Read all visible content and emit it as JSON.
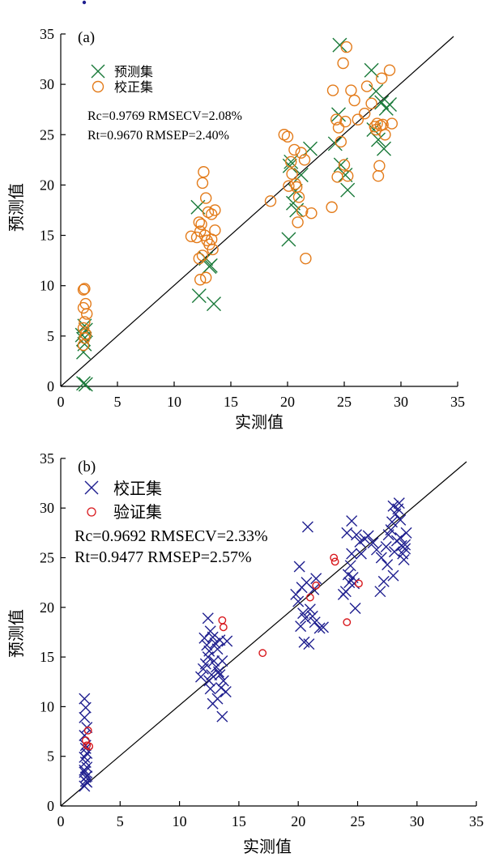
{
  "colors": {
    "green_marker": "#1a7a3a",
    "orange_marker": "#e37b1a",
    "navy_marker": "#1f1f8f",
    "red_marker": "#d8191e",
    "axis": "#000000"
  },
  "chart_data": [
    {
      "type": "scatter",
      "panel_label": "(a)",
      "xlabel": "实测值",
      "ylabel": "预测值",
      "xlim": [
        0,
        35
      ],
      "ylim": [
        0,
        35
      ],
      "xticks": [
        "0",
        "5",
        "10",
        "15",
        "20",
        "25",
        "30",
        "35"
      ],
      "yticks": [
        "0",
        "5",
        "10",
        "15",
        "20",
        "25",
        "30",
        "35"
      ],
      "grid": false,
      "legend_position": "top-left",
      "stats": [
        "Rc=0.9769 RMSECV=2.08%",
        "Rt=0.9670 RMSEP=2.40%"
      ],
      "reference_line": "y = x",
      "series": [
        {
          "name": "预测集",
          "marker": "x",
          "color": "#1a7a3a",
          "points": [
            [
              2.0,
              0.3
            ],
            [
              2.2,
              0.2
            ],
            [
              2.0,
              3.4
            ],
            [
              2.1,
              4.2
            ],
            [
              1.9,
              5.1
            ],
            [
              2.2,
              5.6
            ],
            [
              2.0,
              4.7
            ],
            [
              2.1,
              6.0
            ],
            [
              12.1,
              17.8
            ],
            [
              12.2,
              9.0
            ],
            [
              13.1,
              11.9
            ],
            [
              13.5,
              8.2
            ],
            [
              12.8,
              12.7
            ],
            [
              13.2,
              12.0
            ],
            [
              20.1,
              14.6
            ],
            [
              20.3,
              22.3
            ],
            [
              20.5,
              18.2
            ],
            [
              20.7,
              19.4
            ],
            [
              21.2,
              21.0
            ],
            [
              22.0,
              23.6
            ],
            [
              20.8,
              17.5
            ],
            [
              20.2,
              21.9
            ],
            [
              24.2,
              24.1
            ],
            [
              24.5,
              27.0
            ],
            [
              24.7,
              22.0
            ],
            [
              25.1,
              21.0
            ],
            [
              25.3,
              19.5
            ],
            [
              24.6,
              33.9
            ],
            [
              27.4,
              31.4
            ],
            [
              27.8,
              29.3
            ],
            [
              28.3,
              28.2
            ],
            [
              28.5,
              23.6
            ],
            [
              28.0,
              24.5
            ],
            [
              29.0,
              28.0
            ],
            [
              27.6,
              25.5
            ],
            [
              28.7,
              27.6
            ]
          ]
        },
        {
          "name": "校正集",
          "marker": "o",
          "color": "#e37b1a",
          "points": [
            [
              2.0,
              9.6
            ],
            [
              2.1,
              9.7
            ],
            [
              2.2,
              8.2
            ],
            [
              2.0,
              7.8
            ],
            [
              2.3,
              7.2
            ],
            [
              2.1,
              6.4
            ],
            [
              2.0,
              5.8
            ],
            [
              2.2,
              5.2
            ],
            [
              2.1,
              4.8
            ],
            [
              2.0,
              4.1
            ],
            [
              12.2,
              16.3
            ],
            [
              12.4,
              16.1
            ],
            [
              12.6,
              21.3
            ],
            [
              12.5,
              20.2
            ],
            [
              12.8,
              18.7
            ],
            [
              13.0,
              17.3
            ],
            [
              13.3,
              17.1
            ],
            [
              13.6,
              17.5
            ],
            [
              11.5,
              14.9
            ],
            [
              12.0,
              14.8
            ],
            [
              12.3,
              15.4
            ],
            [
              12.7,
              15.0
            ],
            [
              12.9,
              14.5
            ],
            [
              13.1,
              14.1
            ],
            [
              13.3,
              14.6
            ],
            [
              13.6,
              15.5
            ],
            [
              12.2,
              12.7
            ],
            [
              12.5,
              13.0
            ],
            [
              12.3,
              10.6
            ],
            [
              12.8,
              10.8
            ],
            [
              13.4,
              13.6
            ],
            [
              18.5,
              18.4
            ],
            [
              19.7,
              25.0
            ],
            [
              20.0,
              24.8
            ],
            [
              20.1,
              19.9
            ],
            [
              20.3,
              22.3
            ],
            [
              20.4,
              21.1
            ],
            [
              20.6,
              23.5
            ],
            [
              20.7,
              20.1
            ],
            [
              20.8,
              19.8
            ],
            [
              20.9,
              16.3
            ],
            [
              21.0,
              18.8
            ],
            [
              21.2,
              23.2
            ],
            [
              21.3,
              17.4
            ],
            [
              21.5,
              22.5
            ],
            [
              21.6,
              12.7
            ],
            [
              22.1,
              17.2
            ],
            [
              23.9,
              17.8
            ],
            [
              24.0,
              29.4
            ],
            [
              24.3,
              26.5
            ],
            [
              24.5,
              25.7
            ],
            [
              24.7,
              24.3
            ],
            [
              24.9,
              32.1
            ],
            [
              25.1,
              26.3
            ],
            [
              25.2,
              33.7
            ],
            [
              24.4,
              20.8
            ],
            [
              25.0,
              22.0
            ],
            [
              25.3,
              20.9
            ],
            [
              25.6,
              29.4
            ],
            [
              25.9,
              28.4
            ],
            [
              26.2,
              26.5
            ],
            [
              26.8,
              27.1
            ],
            [
              27.0,
              29.8
            ],
            [
              27.4,
              28.1
            ],
            [
              27.7,
              25.8
            ],
            [
              27.8,
              25.5
            ],
            [
              27.9,
              26.1
            ],
            [
              28.1,
              21.9
            ],
            [
              28.0,
              20.9
            ],
            [
              28.2,
              25.9
            ],
            [
              28.4,
              26.0
            ],
            [
              28.6,
              25.0
            ],
            [
              29.0,
              31.4
            ],
            [
              29.2,
              26.1
            ],
            [
              28.3,
              30.6
            ]
          ]
        }
      ]
    },
    {
      "type": "scatter",
      "panel_label": "(b)",
      "xlabel": "实测值",
      "ylabel": "预测值",
      "xlim": [
        0,
        35
      ],
      "ylim": [
        0,
        35
      ],
      "xticks": [
        "0",
        "5",
        "10",
        "15",
        "20",
        "25",
        "30",
        "35"
      ],
      "yticks": [
        "0",
        "5",
        "10",
        "15",
        "20",
        "25",
        "30",
        "35"
      ],
      "grid": false,
      "legend_position": "top-left",
      "stats": [
        "Rc=0.9692 RMSECV=2.33%",
        "Rt=0.9477 RMSEP=2.57%"
      ],
      "reference_line": "y = x",
      "series": [
        {
          "name": "校正集",
          "marker": "x",
          "color": "#1f1f8f",
          "points": [
            [
              2.0,
              10.8
            ],
            [
              2.1,
              9.9
            ],
            [
              2.0,
              8.9
            ],
            [
              2.2,
              7.9
            ],
            [
              2.0,
              7.1
            ],
            [
              2.1,
              6.1
            ],
            [
              2.2,
              5.3
            ],
            [
              2.0,
              4.9
            ],
            [
              2.1,
              4.4
            ],
            [
              2.2,
              3.9
            ],
            [
              2.0,
              3.4
            ],
            [
              2.1,
              2.9
            ],
            [
              2.2,
              2.4
            ],
            [
              2.0,
              2.0
            ],
            [
              2.1,
              2.5
            ],
            [
              2.2,
              3.0
            ],
            [
              2.0,
              3.6
            ],
            [
              2.1,
              5.8
            ],
            [
              11.8,
              13.0
            ],
            [
              12.0,
              13.8
            ],
            [
              12.2,
              14.3
            ],
            [
              12.4,
              15.0
            ],
            [
              12.5,
              15.6
            ],
            [
              12.3,
              16.2
            ],
            [
              12.1,
              16.9
            ],
            [
              12.6,
              17.6
            ],
            [
              12.4,
              18.9
            ],
            [
              12.8,
              17.0
            ],
            [
              13.0,
              16.4
            ],
            [
              13.2,
              15.8
            ],
            [
              13.4,
              16.7
            ],
            [
              12.9,
              14.6
            ],
            [
              13.1,
              14.0
            ],
            [
              13.3,
              13.5
            ],
            [
              12.7,
              13.2
            ],
            [
              12.5,
              12.6
            ],
            [
              12.6,
              11.8
            ],
            [
              12.8,
              10.3
            ],
            [
              13.2,
              10.8
            ],
            [
              13.5,
              11.9
            ],
            [
              13.7,
              12.6
            ],
            [
              13.6,
              9.0
            ],
            [
              13.9,
              11.5
            ],
            [
              13.4,
              13.2
            ],
            [
              13.6,
              14.6
            ],
            [
              14.0,
              16.6
            ],
            [
              19.8,
              21.3
            ],
            [
              20.0,
              20.6
            ],
            [
              20.1,
              24.1
            ],
            [
              20.3,
              22.0
            ],
            [
              20.4,
              19.4
            ],
            [
              20.6,
              18.9
            ],
            [
              20.7,
              22.5
            ],
            [
              20.2,
              18.1
            ],
            [
              20.5,
              16.5
            ],
            [
              20.9,
              16.3
            ],
            [
              21.0,
              19.8
            ],
            [
              21.2,
              19.1
            ],
            [
              21.3,
              21.8
            ],
            [
              21.5,
              22.9
            ],
            [
              21.4,
              18.5
            ],
            [
              20.8,
              28.1
            ],
            [
              21.8,
              17.9
            ],
            [
              22.1,
              18.0
            ],
            [
              23.8,
              21.3
            ],
            [
              24.0,
              21.6
            ],
            [
              24.2,
              23.3
            ],
            [
              24.3,
              22.5
            ],
            [
              24.4,
              24.2
            ],
            [
              24.5,
              25.4
            ],
            [
              24.6,
              23.0
            ],
            [
              24.7,
              22.4
            ],
            [
              24.8,
              19.9
            ],
            [
              24.1,
              27.5
            ],
            [
              24.5,
              28.7
            ],
            [
              24.9,
              27.3
            ],
            [
              25.2,
              26.6
            ],
            [
              25.3,
              25.4
            ],
            [
              25.6,
              26.9
            ],
            [
              25.9,
              27.2
            ],
            [
              26.3,
              26.5
            ],
            [
              26.6,
              25.8
            ],
            [
              26.9,
              21.6
            ],
            [
              27.2,
              22.6
            ],
            [
              27.0,
              25.0
            ],
            [
              27.4,
              26.1
            ],
            [
              27.6,
              27.3
            ],
            [
              27.8,
              27.8
            ],
            [
              27.9,
              28.6
            ],
            [
              28.0,
              30.2
            ],
            [
              28.2,
              29.4
            ],
            [
              28.4,
              29.9
            ],
            [
              28.5,
              30.5
            ],
            [
              28.6,
              27.0
            ],
            [
              28.7,
              26.2
            ],
            [
              28.8,
              25.4
            ],
            [
              28.9,
              24.8
            ],
            [
              29.0,
              25.9
            ],
            [
              29.1,
              27.5
            ],
            [
              28.3,
              26.7
            ],
            [
              28.0,
              23.2
            ],
            [
              28.1,
              25.6
            ],
            [
              27.5,
              24.3
            ],
            [
              28.6,
              28.8
            ],
            [
              29.0,
              26.3
            ]
          ]
        },
        {
          "name": "验证集",
          "marker": "o",
          "color": "#d8191e",
          "points": [
            [
              2.1,
              6.6
            ],
            [
              2.3,
              7.6
            ],
            [
              2.2,
              6.1
            ],
            [
              2.4,
              6.0
            ],
            [
              13.6,
              18.7
            ],
            [
              13.7,
              18.0
            ],
            [
              17.0,
              15.4
            ],
            [
              21.0,
              21.0
            ],
            [
              21.5,
              22.2
            ],
            [
              23.0,
              25.0
            ],
            [
              23.1,
              24.6
            ],
            [
              24.1,
              18.5
            ],
            [
              25.1,
              22.4
            ]
          ]
        }
      ]
    }
  ]
}
